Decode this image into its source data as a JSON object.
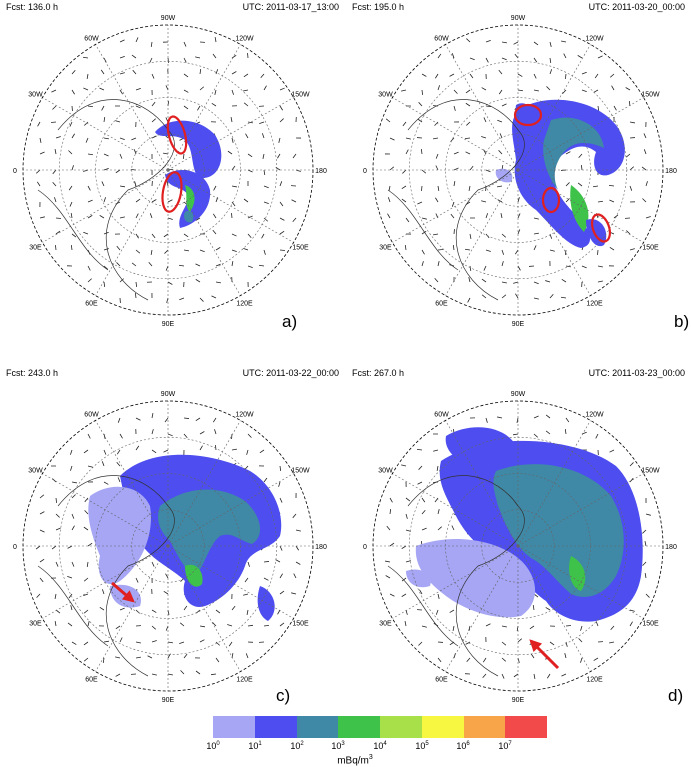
{
  "panels": [
    {
      "id": "a",
      "fcst": "Fcst: 136.0 h",
      "utc": "UTC: 2011-03-17_13:00",
      "label": "a)",
      "lon_labels": [
        "0",
        "30W",
        "60W",
        "90W",
        "120W",
        "150W",
        "180",
        "150E",
        "120E",
        "90E",
        "60E",
        "30E"
      ]
    },
    {
      "id": "b",
      "fcst": "Fcst: 195.0 h",
      "utc": "UTC: 2011-03-20_00:00",
      "label": "b)",
      "lon_labels": [
        "0",
        "30W",
        "60W",
        "90W",
        "120W",
        "150W",
        "180",
        "150E",
        "120E",
        "90E",
        "60E",
        "30E"
      ]
    },
    {
      "id": "c",
      "fcst": "Fcst: 243.0 h",
      "utc": "UTC: 2011-03-22_00:00",
      "label": "c)",
      "lon_labels": [
        "0",
        "30W",
        "60W",
        "90W",
        "120W",
        "150W",
        "180",
        "150E",
        "120E",
        "90E",
        "60E",
        "30E"
      ]
    },
    {
      "id": "d",
      "fcst": "Fcst: 267.0 h",
      "utc": "UTC: 2011-03-23_00:00",
      "label": "d)",
      "lon_labels": [
        "0",
        "30W",
        "60W",
        "90W",
        "120W",
        "150W",
        "180",
        "150E",
        "120E",
        "90E",
        "60E",
        "30E"
      ]
    }
  ],
  "colorbar": {
    "colors": [
      "#a6a6f5",
      "#4d4df0",
      "#3f88a6",
      "#3fc24a",
      "#a8e04a",
      "#f7f742",
      "#f7a548",
      "#f24a4a"
    ],
    "ticks": [
      {
        "base": "10",
        "exp": "0"
      },
      {
        "base": "10",
        "exp": "1"
      },
      {
        "base": "10",
        "exp": "2"
      },
      {
        "base": "10",
        "exp": "3"
      },
      {
        "base": "10",
        "exp": "4"
      },
      {
        "base": "10",
        "exp": "5"
      },
      {
        "base": "10",
        "exp": "6"
      },
      {
        "base": "10",
        "exp": "7"
      }
    ],
    "unit_base": "mBq/m",
    "unit_exp": "3"
  }
}
